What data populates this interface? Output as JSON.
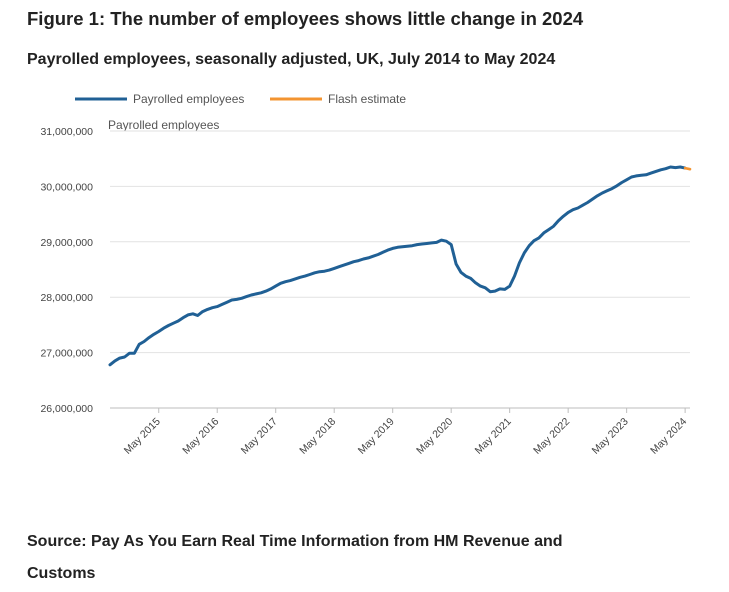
{
  "figure": {
    "title": "Figure 1: The number of employees shows little change in 2024",
    "subtitle": "Payrolled employees, seasonally adjusted, UK, July 2014 to May 2024",
    "source": "Source: Pay As You Earn Real Time Information from HM Revenue and Customs"
  },
  "colors": {
    "primary": "#206095",
    "flash": "#F39431",
    "grid": "#E2E2E2",
    "axis": "#BEBEBE"
  },
  "chart_data": {
    "type": "line",
    "ylabel": "Payrolled employees",
    "ylim": [
      26000000,
      31000000
    ],
    "yticks": [
      {
        "value": 31000000,
        "label": "31,000,000"
      },
      {
        "value": 30000000,
        "label": "30,000,000"
      },
      {
        "value": 29000000,
        "label": "29,000,000"
      },
      {
        "value": 28000000,
        "label": "28,000,000"
      },
      {
        "value": 27000000,
        "label": "27,000,000"
      },
      {
        "value": 26000000,
        "label": "26,000,000"
      }
    ],
    "xticks": [
      {
        "index": 10,
        "label": "May 2015"
      },
      {
        "index": 22,
        "label": "May 2016"
      },
      {
        "index": 34,
        "label": "May 2017"
      },
      {
        "index": 46,
        "label": "May 2018"
      },
      {
        "index": 58,
        "label": "May 2019"
      },
      {
        "index": 70,
        "label": "May 2020"
      },
      {
        "index": 82,
        "label": "May 2021"
      },
      {
        "index": 94,
        "label": "May 2022"
      },
      {
        "index": 106,
        "label": "May 2023"
      },
      {
        "index": 118,
        "label": "May 2024"
      }
    ],
    "x_start": "July 2014",
    "x_end": "May 2024",
    "series": [
      {
        "name": "Payrolled employees",
        "color": "#206095",
        "start_index": 0,
        "values": [
          26780000,
          26850000,
          26900000,
          26920000,
          26990000,
          26990000,
          27150000,
          27200000,
          27270000,
          27330000,
          27380000,
          27440000,
          27490000,
          27530000,
          27570000,
          27630000,
          27680000,
          27700000,
          27670000,
          27740000,
          27780000,
          27810000,
          27830000,
          27870000,
          27910000,
          27950000,
          27960000,
          27980000,
          28010000,
          28040000,
          28060000,
          28080000,
          28110000,
          28150000,
          28200000,
          28250000,
          28280000,
          28300000,
          28330000,
          28360000,
          28380000,
          28410000,
          28440000,
          28460000,
          28470000,
          28490000,
          28520000,
          28550000,
          28580000,
          28610000,
          28640000,
          28660000,
          28690000,
          28710000,
          28740000,
          28770000,
          28810000,
          28850000,
          28880000,
          28900000,
          28910000,
          28920000,
          28930000,
          28950000,
          28960000,
          28970000,
          28980000,
          28990000,
          29030000,
          29010000,
          28950000,
          28600000,
          28450000,
          28380000,
          28340000,
          28260000,
          28200000,
          28170000,
          28100000,
          28110000,
          28150000,
          28140000,
          28200000,
          28380000,
          28620000,
          28800000,
          28930000,
          29020000,
          29070000,
          29160000,
          29220000,
          29280000,
          29380000,
          29460000,
          29530000,
          29580000,
          29610000,
          29660000,
          29710000,
          29770000,
          29830000,
          29880000,
          29920000,
          29960000,
          30010000,
          30070000,
          30120000,
          30170000,
          30190000,
          30200000,
          30210000,
          30240000,
          30270000,
          30300000,
          30320000,
          30350000,
          30340000,
          30350000,
          30330000
        ]
      },
      {
        "name": "Flash estimate",
        "color": "#F39431",
        "start_index": 118,
        "values": [
          30330000,
          30310000
        ]
      }
    ],
    "legend": [
      {
        "name": "Payrolled employees",
        "color": "#206095"
      },
      {
        "name": "Flash estimate",
        "color": "#F39431"
      }
    ],
    "legend_position": "top-left",
    "grid": true
  }
}
